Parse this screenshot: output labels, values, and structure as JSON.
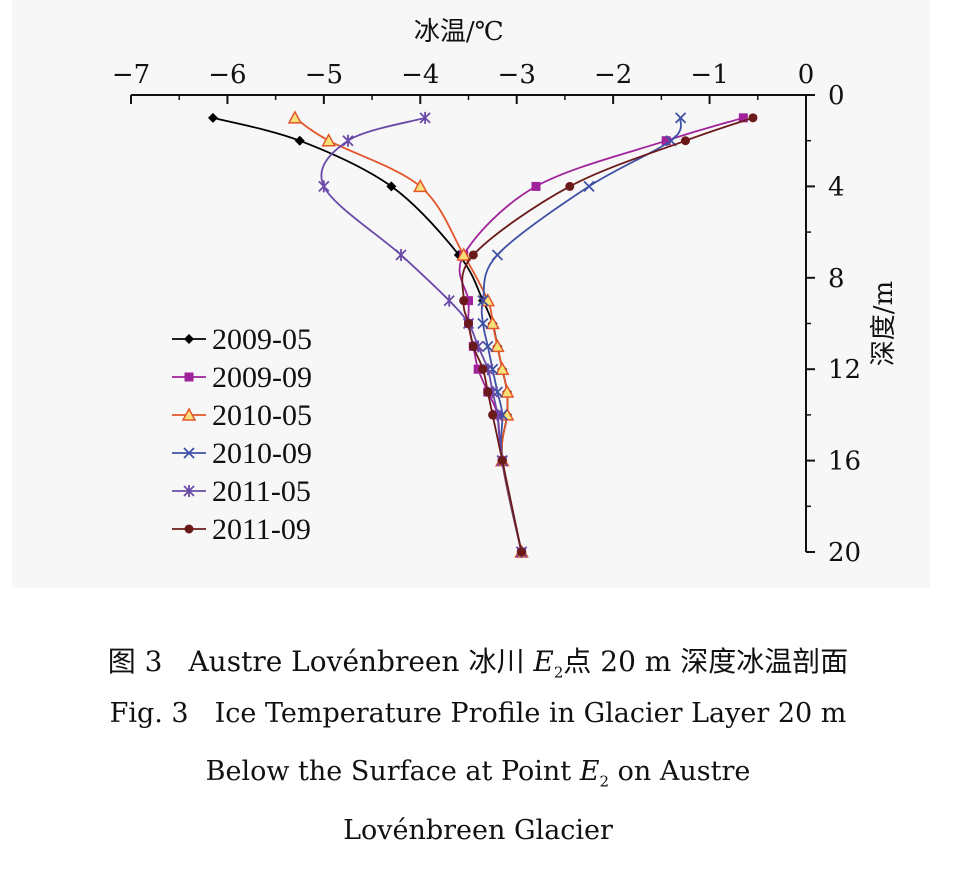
{
  "chart_data": {
    "type": "line",
    "title": "",
    "xlabel": "冰温/℃",
    "ylabel": "深度/m",
    "xlim": [
      -7,
      0
    ],
    "ylim": [
      0,
      20
    ],
    "y_inverted": true,
    "x_axis_position": "top",
    "y_axis_position": "right",
    "xticks": [
      "−7",
      "−6",
      "−5",
      "−4",
      "−3",
      "−2",
      "−1",
      "0"
    ],
    "yticks": [
      "0",
      "4",
      "8",
      "12",
      "16",
      "20"
    ],
    "grid": false,
    "legend_position": "left",
    "series": [
      {
        "name": "2009-05",
        "color": "#000000",
        "marker": "diamond",
        "x": [
          -6.15,
          -5.25,
          -4.3,
          -3.6,
          -3.35,
          -3.25,
          -3.2,
          -3.15,
          -3.1,
          -3.1,
          -3.15,
          -2.95
        ],
        "y": [
          1,
          2,
          4,
          7,
          9,
          10,
          11,
          12,
          13,
          14,
          16,
          20
        ]
      },
      {
        "name": "2009-09",
        "color": "#a0229a",
        "marker": "square",
        "x": [
          -0.65,
          -1.45,
          -2.8,
          -3.55,
          -3.5,
          -3.5,
          -3.45,
          -3.4,
          -3.3,
          -3.2,
          -3.15,
          -2.95
        ],
        "y": [
          1,
          2,
          4,
          7,
          9,
          10,
          11,
          12,
          13,
          14,
          16,
          20
        ]
      },
      {
        "name": "2010-05",
        "color": "#e2562a",
        "marker": "triangle",
        "x": [
          -5.3,
          -4.95,
          -4.0,
          -3.55,
          -3.3,
          -3.25,
          -3.2,
          -3.15,
          -3.1,
          -3.1,
          -3.15,
          -2.95
        ],
        "y": [
          1,
          2,
          4,
          7,
          9,
          10,
          11,
          12,
          13,
          14,
          16,
          20
        ]
      },
      {
        "name": "2010-09",
        "color": "#3f51a5",
        "marker": "x",
        "x": [
          -1.3,
          -1.4,
          -2.25,
          -3.2,
          -3.35,
          -3.35,
          -3.3,
          -3.25,
          -3.2,
          -3.15,
          -3.15,
          -2.95
        ],
        "y": [
          1,
          2,
          4,
          7,
          9,
          10,
          11,
          12,
          13,
          14,
          16,
          20
        ]
      },
      {
        "name": "2011-05",
        "color": "#6a4aa8",
        "marker": "asterisk",
        "x": [
          -3.95,
          -4.75,
          -5.0,
          -4.2,
          -3.7,
          -3.5,
          -3.4,
          -3.3,
          -3.25,
          -3.2,
          -3.15,
          -2.95
        ],
        "y": [
          1,
          2,
          4,
          7,
          9,
          10,
          11,
          12,
          13,
          14,
          16,
          20
        ]
      },
      {
        "name": "2011-09",
        "color": "#6b1a1a",
        "marker": "circle",
        "x": [
          -0.55,
          -1.25,
          -2.45,
          -3.45,
          -3.55,
          -3.5,
          -3.45,
          -3.35,
          -3.3,
          -3.25,
          -3.15,
          -2.95
        ],
        "y": [
          1,
          2,
          4,
          7,
          9,
          10,
          11,
          12,
          13,
          14,
          16,
          20
        ]
      }
    ]
  },
  "caption": {
    "cn_prefix": "图 3",
    "cn_name": "Austre Lovénbreen 冰川",
    "cn_point_letter": "E",
    "cn_point_sub": "2",
    "cn_rest": "点 20 m 深度冰温剖面",
    "en_line1_prefix": "Fig. 3",
    "en_line1_rest": "Ice Temperature Profile in Glacier Layer 20 m",
    "en_line2_before": "Below the Surface at Point",
    "en_line2_letter": "E",
    "en_line2_sub": "2",
    "en_line2_after": "on Austre",
    "en_line3": "Lovénbreen Glacier"
  }
}
